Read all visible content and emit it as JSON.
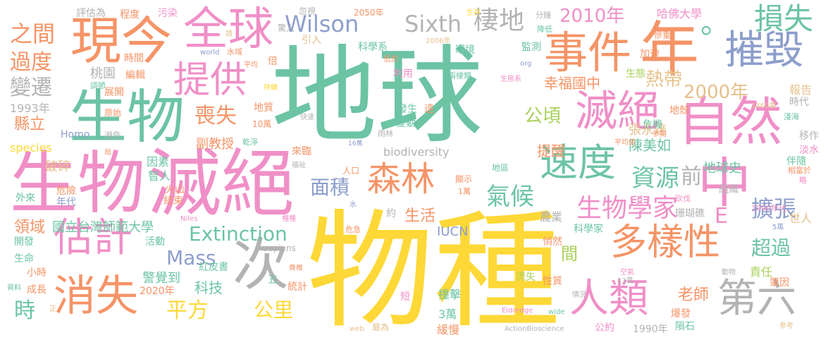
{
  "palette": {
    "teal": "#6cc4a4",
    "yellow": "#fdd837",
    "pink": "#f08fc7",
    "green": "#a8d05a",
    "blue": "#8d9ecb",
    "orange": "#f59467",
    "gray": "#b3b3b3",
    "tan": "#e5c18d"
  },
  "words": [
    {
      "text": "地球",
      "color": "teal"
    },
    {
      "text": "物種",
      "color": "yellow"
    },
    {
      "text": "生物",
      "color": "pink"
    },
    {
      "text": "滅絕",
      "color": "pink"
    },
    {
      "text": "生物",
      "color": "teal"
    },
    {
      "text": "年",
      "color": "orange"
    },
    {
      "text": "現今",
      "color": "orange"
    },
    {
      "text": "全球",
      "color": "pink"
    },
    {
      "text": "事件",
      "color": "orange"
    },
    {
      "text": "自然",
      "color": "pink"
    },
    {
      "text": "中",
      "color": "pink"
    },
    {
      "text": "摧毀",
      "color": "blue"
    },
    {
      "text": "。",
      "color": "teal"
    },
    {
      "text": "損失",
      "color": "teal"
    },
    {
      "text": "提供",
      "color": "pink"
    },
    {
      "text": "滅絕",
      "color": "pink"
    },
    {
      "text": "速度",
      "color": "teal"
    },
    {
      "text": "森林",
      "color": "orange"
    },
    {
      "text": "次",
      "color": "gray"
    },
    {
      "text": "消失",
      "color": "orange"
    },
    {
      "text": "估計",
      "color": "pink"
    },
    {
      "text": "人類",
      "color": "pink"
    },
    {
      "text": "多樣性",
      "color": "orange"
    },
    {
      "text": "第六",
      "color": "gray"
    },
    {
      "text": "生物學家",
      "color": "pink"
    },
    {
      "text": "資源",
      "color": "teal"
    },
    {
      "text": "氣候",
      "color": "teal"
    },
    {
      "text": "面積",
      "color": "blue"
    },
    {
      "text": "Wilson",
      "color": "blue"
    },
    {
      "text": "Sixth",
      "color": "gray"
    },
    {
      "text": "棲地",
      "color": "gray"
    },
    {
      "text": "之間",
      "color": "orange"
    },
    {
      "text": "過度",
      "color": "orange"
    },
    {
      "text": "變遷",
      "color": "gray"
    },
    {
      "text": "喪失",
      "color": "orange"
    },
    {
      "text": "公頃",
      "color": "green"
    },
    {
      "text": "Extinction",
      "color": "teal"
    },
    {
      "text": "Mass",
      "color": "blue"
    },
    {
      "text": "平方",
      "color": "yellow"
    },
    {
      "text": "公里",
      "color": "yellow"
    },
    {
      "text": "2010年",
      "color": "pink"
    },
    {
      "text": "2000年",
      "color": "tan"
    },
    {
      "text": "熱帶",
      "color": "tan"
    },
    {
      "text": "幸福國中",
      "color": "orange"
    },
    {
      "text": "哈佛大學",
      "color": "pink"
    },
    {
      "text": "擴張",
      "color": "blue"
    },
    {
      "text": "超過",
      "color": "teal"
    },
    {
      "text": "前",
      "color": "gray"
    },
    {
      "text": "E",
      "color": "pink"
    },
    {
      "text": "時",
      "color": "teal"
    },
    {
      "text": "老師",
      "color": "orange"
    },
    {
      "text": "陳美如",
      "color": "teal"
    },
    {
      "text": "張永達",
      "color": "tan"
    },
    {
      "text": "提醒",
      "color": "orange"
    },
    {
      "text": "間",
      "color": "green"
    },
    {
      "text": "生活",
      "color": "orange"
    },
    {
      "text": "科技",
      "color": "teal"
    },
    {
      "text": "副教授",
      "color": "orange"
    },
    {
      "text": "國立台灣師範大學",
      "color": "teal"
    },
    {
      "text": "領域",
      "color": "orange"
    },
    {
      "text": "縣立",
      "color": "orange"
    },
    {
      "text": "桃園",
      "color": "gray"
    },
    {
      "text": "1993年",
      "color": "gray"
    },
    {
      "text": "species",
      "color": "yellow"
    },
    {
      "text": "Homo",
      "color": "blue"
    },
    {
      "text": "破碎",
      "color": "tan"
    },
    {
      "text": "biodiversity",
      "color": "gray"
    },
    {
      "text": "IUCN",
      "color": "blue"
    },
    {
      "text": "地球史",
      "color": "teal"
    },
    {
      "text": "責任",
      "color": "green"
    },
    {
      "text": "報告",
      "color": "tan"
    },
    {
      "text": "時代",
      "color": "gray"
    },
    {
      "text": "移作",
      "color": "gray"
    },
    {
      "text": "淡水",
      "color": "pink"
    },
    {
      "text": "伴隨",
      "color": "teal"
    },
    {
      "text": "組織",
      "color": "gray"
    },
    {
      "text": "世人",
      "color": "tan"
    },
    {
      "text": "農業",
      "color": "gray"
    },
    {
      "text": "珊瑚礁",
      "color": "gray"
    },
    {
      "text": "1990年代",
      "color": "pink"
    },
    {
      "text": "緩慢",
      "color": "orange"
    },
    {
      "text": "3萬",
      "color": "teal"
    },
    {
      "text": "撞擊",
      "color": "teal"
    },
    {
      "text": "悄然",
      "color": "orange"
    },
    {
      "text": "性質",
      "color": "orange"
    },
    {
      "text": "流失",
      "color": "green"
    },
    {
      "text": "1990年",
      "color": "gray"
    },
    {
      "text": "隕石",
      "color": "teal"
    },
    {
      "text": "爆發",
      "color": "orange"
    },
    {
      "text": "公約",
      "color": "pink"
    },
    {
      "text": "科學家",
      "color": "teal"
    },
    {
      "text": "ActionBioscience",
      "color": "gray"
    },
    {
      "text": "Eldredge",
      "color": "pink"
    },
    {
      "text": "wide",
      "color": "teal"
    },
    {
      "text": "web",
      "color": "tan"
    },
    {
      "text": "最為",
      "color": "tan"
    },
    {
      "text": "參考",
      "color": "tan"
    },
    {
      "text": "資料",
      "color": "teal"
    },
    {
      "text": "成長",
      "color": "orange"
    },
    {
      "text": "正",
      "color": "tan"
    },
    {
      "text": "2020年",
      "color": "orange"
    },
    {
      "text": "警覺到",
      "color": "teal"
    },
    {
      "text": "統計",
      "color": "orange"
    },
    {
      "text": "五",
      "color": "teal"
    },
    {
      "text": "紅皮書",
      "color": "teal"
    },
    {
      "text": "活動",
      "color": "teal"
    },
    {
      "text": "sapiens",
      "color": "gray"
    },
    {
      "text": "結束",
      "color": "orange"
    },
    {
      "text": "火山",
      "color": "orange"
    },
    {
      "text": "智人",
      "color": "teal"
    },
    {
      "text": "因素",
      "color": "teal"
    },
    {
      "text": "危險",
      "color": "orange"
    },
    {
      "text": "外來",
      "color": "teal"
    },
    {
      "text": "年代",
      "color": "blue"
    },
    {
      "text": "開發",
      "color": "teal"
    },
    {
      "text": "生命",
      "color": "teal"
    },
    {
      "text": "小時",
      "color": "orange"
    },
    {
      "text": "評估為",
      "color": "gray"
    },
    {
      "text": "程度",
      "color": "orange"
    },
    {
      "text": "污染",
      "color": "pink"
    },
    {
      "text": "忽視",
      "color": "gray"
    },
    {
      "text": "2050年",
      "color": "orange"
    },
    {
      "text": "生存",
      "color": "yellow"
    },
    {
      "text": "分鐘",
      "color": "gray"
    },
    {
      "text": "降低",
      "color": "teal"
    },
    {
      "text": "慘重",
      "color": "orange"
    },
    {
      "text": "驚人",
      "color": "gray"
    },
    {
      "text": "引入",
      "color": "tan"
    },
    {
      "text": "水域",
      "color": "orange"
    },
    {
      "text": "時間",
      "color": "orange"
    },
    {
      "text": "world",
      "color": "blue"
    },
    {
      "text": "2006年",
      "color": "tan"
    },
    {
      "text": "環境",
      "color": "teal"
    },
    {
      "text": "科學系",
      "color": "teal"
    },
    {
      "text": "監測",
      "color": "teal"
    },
    {
      "text": "加速",
      "color": "orange"
    },
    {
      "text": "編輯",
      "color": "orange"
    },
    {
      "text": "倍",
      "color": "orange"
    },
    {
      "text": "平均",
      "color": "orange"
    },
    {
      "text": "低於",
      "color": "orange"
    },
    {
      "text": "利用",
      "color": "pink"
    },
    {
      "text": "org",
      "color": "blue"
    },
    {
      "text": "生態",
      "color": "green"
    },
    {
      "text": "調節",
      "color": "teal"
    },
    {
      "text": "展開",
      "color": "orange"
    },
    {
      "text": "持續",
      "color": "yellow"
    },
    {
      "text": "兩棲類",
      "color": "teal"
    },
    {
      "text": "生態系",
      "color": "pink"
    },
    {
      "text": "危機",
      "color": "teal"
    },
    {
      "text": "原始",
      "color": "orange"
    },
    {
      "text": "地質",
      "color": "orange"
    },
    {
      "text": "發生",
      "color": "teal"
    },
    {
      "text": "遠",
      "color": "orange"
    },
    {
      "text": "地殼",
      "color": "orange"
    },
    {
      "text": "1460萬",
      "color": "tan"
    },
    {
      "text": "淺海",
      "color": "teal"
    },
    {
      "text": "10萬",
      "color": "orange"
    },
    {
      "text": "快速",
      "color": "gray"
    },
    {
      "text": "變動",
      "color": "teal"
    },
    {
      "text": "雨林",
      "color": "gray"
    },
    {
      "text": "16萬",
      "color": "blue"
    },
    {
      "text": "參閱",
      "color": "orange"
    },
    {
      "text": "瀕危",
      "color": "gray"
    },
    {
      "text": "局",
      "color": "orange"
    },
    {
      "text": "乾淨",
      "color": "teal"
    },
    {
      "text": "來臨",
      "color": "orange"
    },
    {
      "text": "福祉",
      "color": "gray"
    },
    {
      "text": "平均值",
      "color": "orange"
    },
    {
      "text": "相當於",
      "color": "orange"
    },
    {
      "text": "人口",
      "color": "orange"
    },
    {
      "text": "顯示",
      "color": "orange"
    },
    {
      "text": "地區",
      "color": "teal"
    },
    {
      "text": "1萬",
      "color": "orange"
    },
    {
      "text": "約",
      "color": "gray"
    },
    {
      "text": "略",
      "color": "pink"
    },
    {
      "text": "水",
      "color": "blue"
    },
    {
      "text": "Niles",
      "color": "pink"
    },
    {
      "text": "危急",
      "color": "orange"
    },
    {
      "text": "種種",
      "color": "pink"
    },
    {
      "text": "砍伐",
      "color": "pink"
    },
    {
      "text": "5萬",
      "color": "blue"
    },
    {
      "text": "脊椎",
      "color": "orange"
    },
    {
      "text": "空氣",
      "color": "pink"
    },
    {
      "text": "動物",
      "color": "gray"
    },
    {
      "text": "肇因",
      "color": "orange"
    },
    {
      "text": "13萬",
      "color": "gray"
    },
    {
      "text": "情況",
      "color": "gray"
    },
    {
      "text": "短",
      "color": "pink"
    },
    {
      "text": "請",
      "color": "tan"
    }
  ]
}
